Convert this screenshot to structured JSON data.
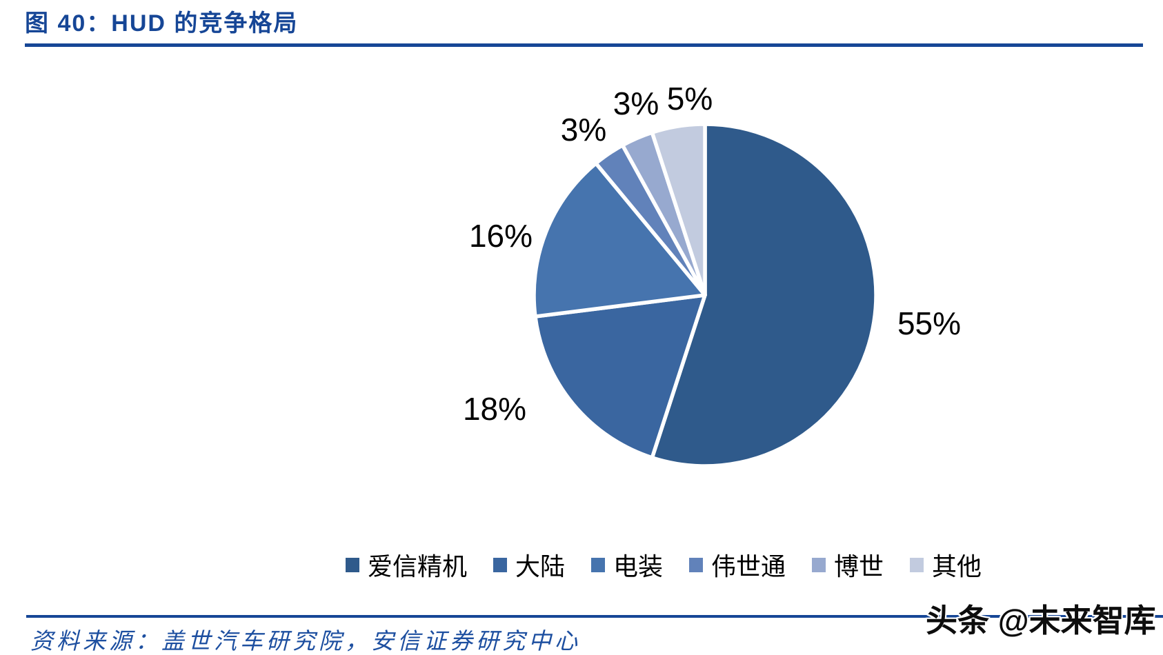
{
  "header": {
    "title": "图 40：HUD 的竞争格局"
  },
  "chart_data": {
    "type": "pie",
    "title": "图 40：HUD 的竞争格局",
    "legend_position": "bottom",
    "start_angle_deg": 0,
    "direction": "clockwise",
    "slices": [
      {
        "name": "爱信精机",
        "value": 55,
        "label": "55%",
        "color": "#2F5A8B"
      },
      {
        "name": "大陆",
        "value": 18,
        "label": "18%",
        "color": "#3A66A0"
      },
      {
        "name": "电装",
        "value": 16,
        "label": "16%",
        "color": "#4674AE"
      },
      {
        "name": "伟世通",
        "value": 3,
        "label": "3%",
        "color": "#6182BA"
      },
      {
        "name": "博世",
        "value": 3,
        "label": "3%",
        "color": "#97A9CF"
      },
      {
        "name": "其他",
        "value": 5,
        "label": "5%",
        "color": "#C2CBDF"
      }
    ]
  },
  "footer": {
    "source": "资料来源：盖世汽车研究院，安信证券研究中心",
    "watermark": "头条 @未来智库"
  }
}
